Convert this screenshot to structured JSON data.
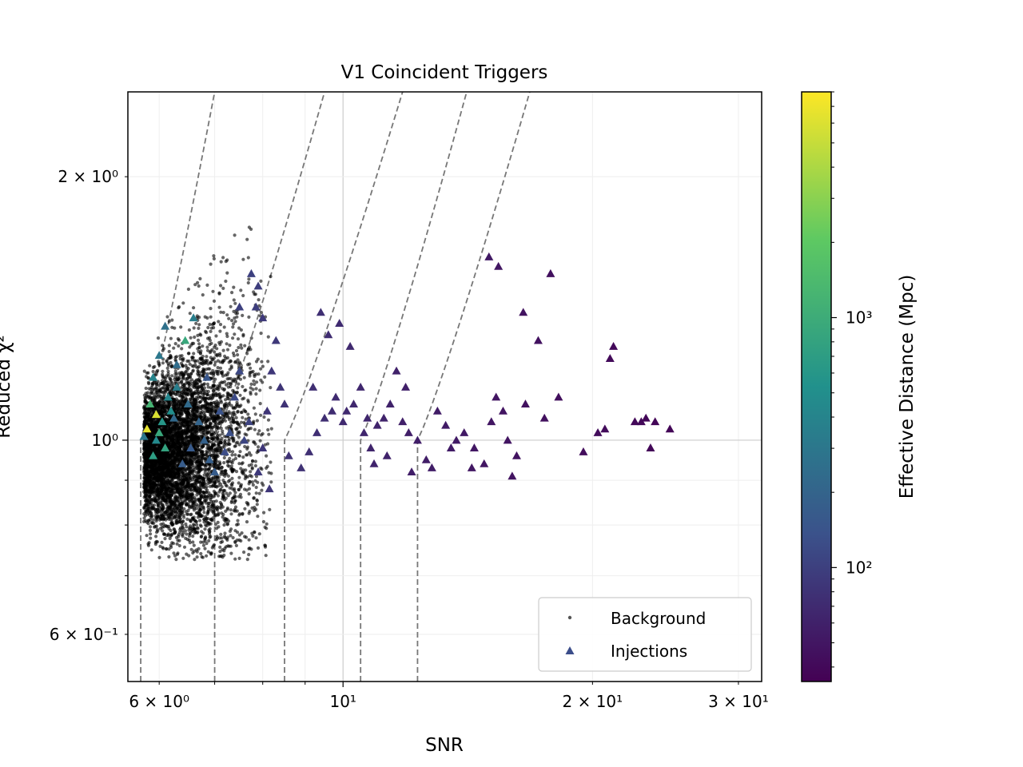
{
  "chart_data": {
    "type": "scatter",
    "title": "V1 Coincident Triggers",
    "xlabel": "SNR",
    "ylabel": "Reduced χ²",
    "xscale": "log",
    "yscale": "log",
    "xlim": [
      5.5,
      32
    ],
    "ylim": [
      0.53,
      2.5
    ],
    "grid": true,
    "legend": {
      "placement": "bottom-right",
      "entries": [
        "Background",
        "Injections"
      ]
    },
    "x_ticks": [
      {
        "value": 6,
        "label": "6 × 10⁰"
      },
      {
        "value": 10,
        "label": "10¹"
      },
      {
        "value": 20,
        "label": "2 × 10¹"
      },
      {
        "value": 30,
        "label": "3 × 10¹"
      }
    ],
    "y_ticks": [
      {
        "value": 0.6,
        "label": "6 × 10⁻¹"
      },
      {
        "value": 1,
        "label": "10⁰"
      },
      {
        "value": 2,
        "label": "2 × 10⁰"
      }
    ],
    "colorbar": {
      "label": "Effective Distance (Mpc)",
      "scale": "log",
      "range": [
        35,
        8000
      ],
      "colormap": [
        "#440154",
        "#3b528b",
        "#21918c",
        "#5ec962",
        "#fde725"
      ],
      "ticks": [
        {
          "value": 100,
          "label": "10²"
        },
        {
          "value": 1000,
          "label": "10³"
        }
      ]
    },
    "threshold_lines": [
      {
        "snr_start": 5.7,
        "snr_top": 7.0
      },
      {
        "snr_start": 7.0,
        "snr_top": 9.5
      },
      {
        "snr_start": 8.5,
        "snr_top": 11.8
      },
      {
        "snr_start": 10.5,
        "snr_top": 14.1
      },
      {
        "snr_start": 12.3,
        "snr_top": 16.8
      }
    ],
    "background_cloud": {
      "series": "Background",
      "color": "#000000",
      "snr_range": [
        5.75,
        8.2
      ],
      "chisq_range": [
        0.73,
        1.8
      ],
      "core_snr": 5.95,
      "core_chisq": 0.96,
      "approx_count": 6000
    },
    "series": [
      {
        "name": "Injections",
        "marker": "triangle",
        "points": [
          [
            5.8,
            1.03,
            6500
          ],
          [
            5.95,
            1.07,
            6000
          ],
          [
            5.85,
            1.1,
            1200
          ],
          [
            6.0,
            1.02,
            900
          ],
          [
            6.1,
            0.98,
            800
          ],
          [
            5.9,
            0.96,
            700
          ],
          [
            6.05,
            1.05,
            600
          ],
          [
            6.2,
            1.08,
            500
          ],
          [
            5.95,
            1.0,
            450
          ],
          [
            6.15,
            1.12,
            420
          ],
          [
            5.75,
            1.01,
            300
          ],
          [
            6.3,
            1.15,
            350
          ],
          [
            6.45,
            1.3,
            900
          ],
          [
            5.9,
            1.18,
            400
          ],
          [
            6.0,
            1.25,
            300
          ],
          [
            6.1,
            1.35,
            260
          ],
          [
            6.6,
            1.38,
            350
          ],
          [
            6.3,
            1.22,
            240
          ],
          [
            6.5,
            1.1,
            230
          ],
          [
            6.7,
            1.05,
            200
          ],
          [
            6.8,
            1.0,
            190
          ],
          [
            6.9,
            0.95,
            180
          ],
          [
            7.0,
            0.92,
            170
          ],
          [
            6.55,
            0.98,
            160
          ],
          [
            6.4,
            0.94,
            170
          ],
          [
            6.25,
            1.06,
            220
          ],
          [
            6.85,
            1.18,
            150
          ],
          [
            7.1,
            1.08,
            140
          ],
          [
            7.3,
            1.02,
            130
          ],
          [
            7.2,
            0.97,
            125
          ],
          [
            7.4,
            1.12,
            120
          ],
          [
            7.5,
            1.2,
            115
          ],
          [
            7.6,
            1.0,
            110
          ],
          [
            7.7,
            1.05,
            105
          ],
          [
            7.75,
            1.55,
            100
          ],
          [
            7.9,
            1.5,
            95
          ],
          [
            7.85,
            1.42,
            95
          ],
          [
            8.0,
            1.38,
            90
          ],
          [
            7.5,
            1.42,
            100
          ],
          [
            8.3,
            1.3,
            88
          ],
          [
            8.2,
            1.2,
            85
          ],
          [
            8.4,
            1.15,
            82
          ],
          [
            8.5,
            1.1,
            80
          ],
          [
            8.1,
            1.08,
            82
          ],
          [
            8.0,
            0.98,
            85
          ],
          [
            7.9,
            0.92,
            90
          ],
          [
            8.15,
            0.88,
            84
          ],
          [
            8.6,
            0.96,
            80
          ],
          [
            8.9,
            0.93,
            78
          ],
          [
            9.1,
            0.97,
            76
          ],
          [
            9.3,
            1.02,
            75
          ],
          [
            9.5,
            1.06,
            74
          ],
          [
            9.7,
            1.08,
            72
          ],
          [
            9.4,
            1.4,
            76
          ],
          [
            9.9,
            1.36,
            70
          ],
          [
            10.2,
            1.28,
            68
          ],
          [
            9.6,
            1.32,
            72
          ],
          [
            10.5,
            1.15,
            66
          ],
          [
            10.3,
            1.1,
            67
          ],
          [
            10.0,
            1.05,
            68
          ],
          [
            10.6,
            1.02,
            65
          ],
          [
            10.8,
            0.98,
            64
          ],
          [
            11.0,
            1.04,
            63
          ],
          [
            11.2,
            1.06,
            62
          ],
          [
            11.4,
            1.1,
            61
          ],
          [
            11.6,
            1.2,
            60
          ],
          [
            11.9,
            1.15,
            59
          ],
          [
            11.3,
            0.96,
            62
          ],
          [
            10.9,
            0.94,
            63
          ],
          [
            12.0,
            1.02,
            58
          ],
          [
            12.3,
            1.0,
            57
          ],
          [
            12.6,
            0.95,
            56
          ],
          [
            12.1,
            0.92,
            57
          ],
          [
            13.0,
            1.08,
            55
          ],
          [
            13.3,
            1.04,
            54
          ],
          [
            13.7,
            1.0,
            53
          ],
          [
            14.0,
            1.02,
            52
          ],
          [
            14.4,
            0.98,
            51
          ],
          [
            14.8,
            0.94,
            50
          ],
          [
            15.1,
            1.05,
            50
          ],
          [
            15.3,
            1.12,
            49
          ],
          [
            15.6,
            1.08,
            48
          ],
          [
            15.8,
            1.0,
            48
          ],
          [
            16.2,
            0.96,
            47
          ],
          [
            16.6,
            1.1,
            46
          ],
          [
            15.0,
            1.62,
            52
          ],
          [
            15.4,
            1.58,
            50
          ],
          [
            16.5,
            1.4,
            47
          ],
          [
            17.2,
            1.3,
            46
          ],
          [
            17.8,
            1.55,
            45
          ],
          [
            17.5,
            1.06,
            45
          ],
          [
            18.2,
            1.12,
            44
          ],
          [
            19.5,
            0.97,
            43
          ],
          [
            20.3,
            1.02,
            42
          ],
          [
            20.7,
            1.03,
            42
          ],
          [
            21.2,
            1.28,
            41
          ],
          [
            21.0,
            1.24,
            41
          ],
          [
            22.5,
            1.05,
            40
          ],
          [
            23.2,
            1.06,
            39
          ],
          [
            23.8,
            1.05,
            38
          ],
          [
            23.5,
            0.98,
            39
          ],
          [
            24.8,
            1.03,
            38
          ],
          [
            22.9,
            1.05,
            40
          ],
          [
            14.3,
            0.93,
            51
          ],
          [
            16.0,
            0.91,
            48
          ],
          [
            13.5,
            0.98,
            54
          ],
          [
            12.8,
            0.93,
            56
          ],
          [
            11.8,
            1.05,
            59
          ],
          [
            9.8,
            1.12,
            70
          ],
          [
            9.2,
            1.15,
            74
          ],
          [
            10.1,
            1.08,
            68
          ],
          [
            10.7,
            1.06,
            65
          ]
        ]
      }
    ]
  }
}
